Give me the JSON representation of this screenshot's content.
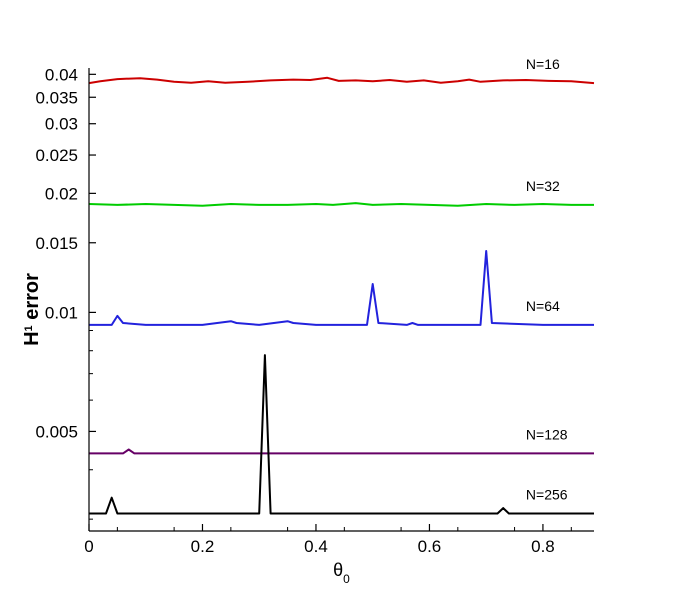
{
  "chart_data": {
    "type": "line",
    "xlabel": "θ",
    "xlabel_sub": "0",
    "ylabel_prefix": "H",
    "ylabel_sup": "1",
    "ylabel_suffix": " error",
    "xlim": [
      0,
      0.89
    ],
    "ylim": [
      0.0028,
      0.0415
    ],
    "yscale": "log",
    "grid": false,
    "legend": "none",
    "x_ticks": [
      0,
      0.2,
      0.4,
      0.6,
      0.8
    ],
    "x_tick_labels": [
      "0",
      "0.2",
      "0.4",
      "0.6",
      "0.8"
    ],
    "y_ticks": [
      0.04,
      0.035,
      0.03,
      0.025,
      0.02,
      0.015,
      0.01,
      0.005
    ],
    "y_tick_labels": [
      "0.04",
      "0.035",
      "0.03",
      "0.025",
      "0.02",
      "0.015",
      "0.01",
      "0.005"
    ],
    "series": [
      {
        "name": "N=16",
        "color": "#cc0000",
        "label_x": 0.77,
        "points": [
          [
            0,
            0.038
          ],
          [
            0.02,
            0.0384
          ],
          [
            0.05,
            0.0389
          ],
          [
            0.09,
            0.0391
          ],
          [
            0.12,
            0.0388
          ],
          [
            0.15,
            0.0383
          ],
          [
            0.18,
            0.0381
          ],
          [
            0.21,
            0.0384
          ],
          [
            0.24,
            0.0381
          ],
          [
            0.28,
            0.0383
          ],
          [
            0.32,
            0.0386
          ],
          [
            0.36,
            0.0388
          ],
          [
            0.39,
            0.0387
          ],
          [
            0.42,
            0.0392
          ],
          [
            0.44,
            0.0385
          ],
          [
            0.47,
            0.0386
          ],
          [
            0.5,
            0.0384
          ],
          [
            0.53,
            0.0387
          ],
          [
            0.56,
            0.0383
          ],
          [
            0.59,
            0.0386
          ],
          [
            0.62,
            0.0381
          ],
          [
            0.65,
            0.0384
          ],
          [
            0.67,
            0.0388
          ],
          [
            0.69,
            0.0383
          ],
          [
            0.73,
            0.0386
          ],
          [
            0.77,
            0.0387
          ],
          [
            0.81,
            0.0385
          ],
          [
            0.85,
            0.0384
          ],
          [
            0.89,
            0.038
          ]
        ]
      },
      {
        "name": "N=32",
        "color": "#00cc00",
        "label_x": 0.77,
        "points": [
          [
            0,
            0.0188
          ],
          [
            0.05,
            0.0187
          ],
          [
            0.1,
            0.0188
          ],
          [
            0.15,
            0.0187
          ],
          [
            0.2,
            0.0186
          ],
          [
            0.25,
            0.0188
          ],
          [
            0.3,
            0.0187
          ],
          [
            0.35,
            0.0187
          ],
          [
            0.4,
            0.0188
          ],
          [
            0.43,
            0.0187
          ],
          [
            0.47,
            0.0189
          ],
          [
            0.5,
            0.0187
          ],
          [
            0.55,
            0.0188
          ],
          [
            0.6,
            0.0187
          ],
          [
            0.65,
            0.0186
          ],
          [
            0.7,
            0.0188
          ],
          [
            0.75,
            0.0187
          ],
          [
            0.8,
            0.0188
          ],
          [
            0.85,
            0.0187
          ],
          [
            0.89,
            0.0187
          ]
        ]
      },
      {
        "name": "N=64",
        "color": "#2222dd",
        "label_x": 0.77,
        "points": [
          [
            0,
            0.0093
          ],
          [
            0.04,
            0.0093
          ],
          [
            0.05,
            0.0098
          ],
          [
            0.06,
            0.0094
          ],
          [
            0.1,
            0.0093
          ],
          [
            0.2,
            0.0093
          ],
          [
            0.25,
            0.0095
          ],
          [
            0.26,
            0.0094
          ],
          [
            0.3,
            0.0093
          ],
          [
            0.35,
            0.0095
          ],
          [
            0.36,
            0.0094
          ],
          [
            0.4,
            0.0093
          ],
          [
            0.49,
            0.0093
          ],
          [
            0.5,
            0.0118
          ],
          [
            0.51,
            0.0094
          ],
          [
            0.56,
            0.0093
          ],
          [
            0.57,
            0.0094
          ],
          [
            0.58,
            0.0093
          ],
          [
            0.69,
            0.0093
          ],
          [
            0.7,
            0.0143
          ],
          [
            0.71,
            0.0094
          ],
          [
            0.8,
            0.0093
          ],
          [
            0.89,
            0.0093
          ]
        ]
      },
      {
        "name": "N=128",
        "color": "#660066",
        "label_x": 0.77,
        "points": [
          [
            0,
            0.0044
          ],
          [
            0.06,
            0.0044
          ],
          [
            0.07,
            0.0045
          ],
          [
            0.08,
            0.0044
          ],
          [
            0.2,
            0.0044
          ],
          [
            0.25,
            0.0044
          ],
          [
            0.3,
            0.0044
          ],
          [
            0.4,
            0.0044
          ],
          [
            0.6,
            0.0044
          ],
          [
            0.8,
            0.0044
          ],
          [
            0.89,
            0.0044
          ]
        ]
      },
      {
        "name": "N=256",
        "color": "#000000",
        "label_x": 0.77,
        "points": [
          [
            0,
            0.0031
          ],
          [
            0.03,
            0.0031
          ],
          [
            0.04,
            0.0034
          ],
          [
            0.05,
            0.0031
          ],
          [
            0.06,
            0.0031
          ],
          [
            0.07,
            0.0031
          ],
          [
            0.3,
            0.0031
          ],
          [
            0.31,
            0.0078
          ],
          [
            0.32,
            0.0031
          ],
          [
            0.49,
            0.0031
          ],
          [
            0.5,
            0.0031
          ],
          [
            0.72,
            0.0031
          ],
          [
            0.73,
            0.0032
          ],
          [
            0.74,
            0.0031
          ],
          [
            0.89,
            0.0031
          ]
        ]
      }
    ]
  }
}
